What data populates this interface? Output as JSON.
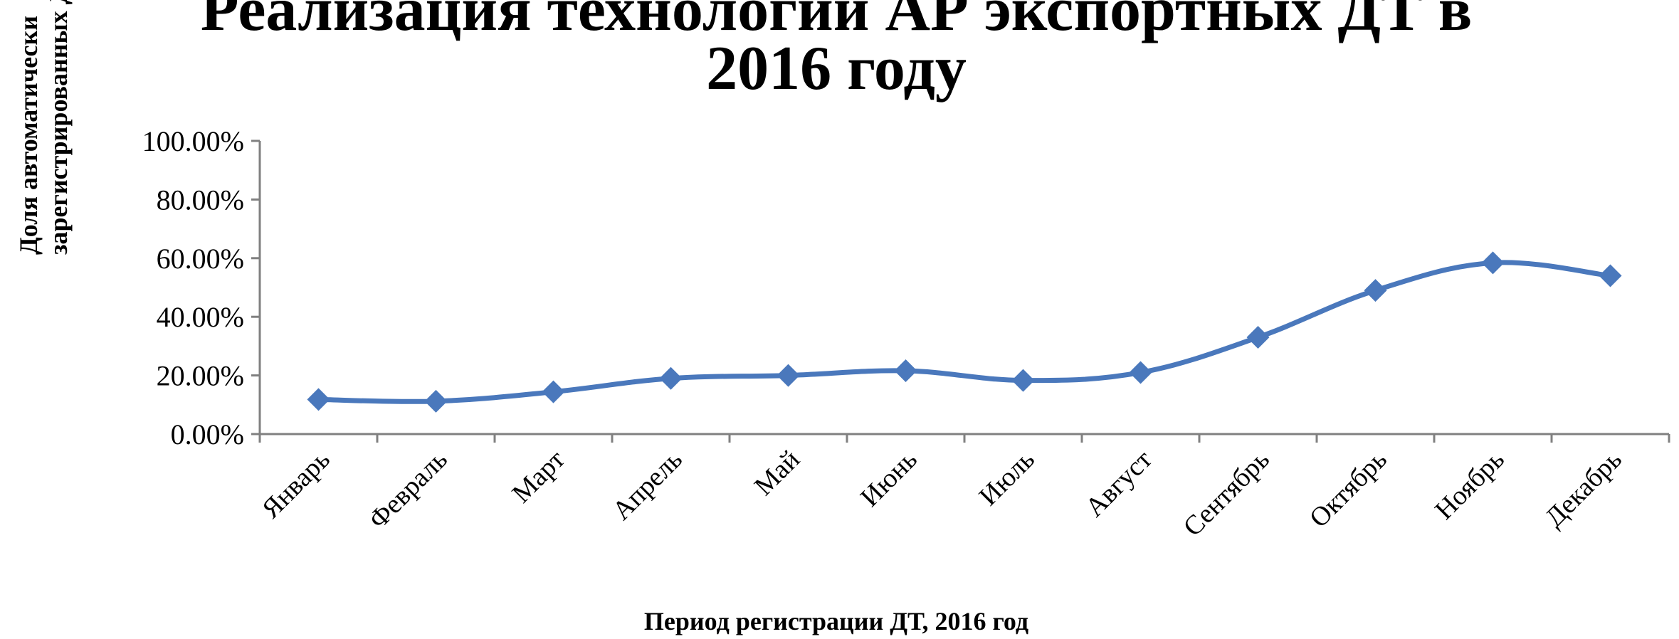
{
  "chart_data": {
    "type": "line",
    "title": [
      "Реализация технологии АР экспортных ДТ в",
      "2016 году"
    ],
    "xlabel": "Период регистрации ДТ, 2016 год",
    "ylabel": [
      "Доля автоматически",
      "зарегистрированных ДТ"
    ],
    "categories": [
      "Январь",
      "Февраль",
      "Март",
      "Апрель",
      "Май",
      "Июнь",
      "Июль",
      "Август",
      "Сентябрь",
      "Октябрь",
      "Ноябрь",
      "Декабрь"
    ],
    "series": [
      {
        "values": [
          11.8,
          11.2,
          14.4,
          19.0,
          20.0,
          21.6,
          18.3,
          21.0,
          33.0,
          49.0,
          58.4,
          54.0
        ]
      }
    ],
    "y_ticks": [
      "0.00%",
      "20.00%",
      "40.00%",
      "60.00%",
      "80.00%",
      "100.00%"
    ],
    "ylim": [
      0,
      100
    ],
    "grid": false,
    "legend": "none",
    "colors": {
      "series": "#4a78bc",
      "axis": "#808080"
    },
    "marker": "diamond"
  }
}
